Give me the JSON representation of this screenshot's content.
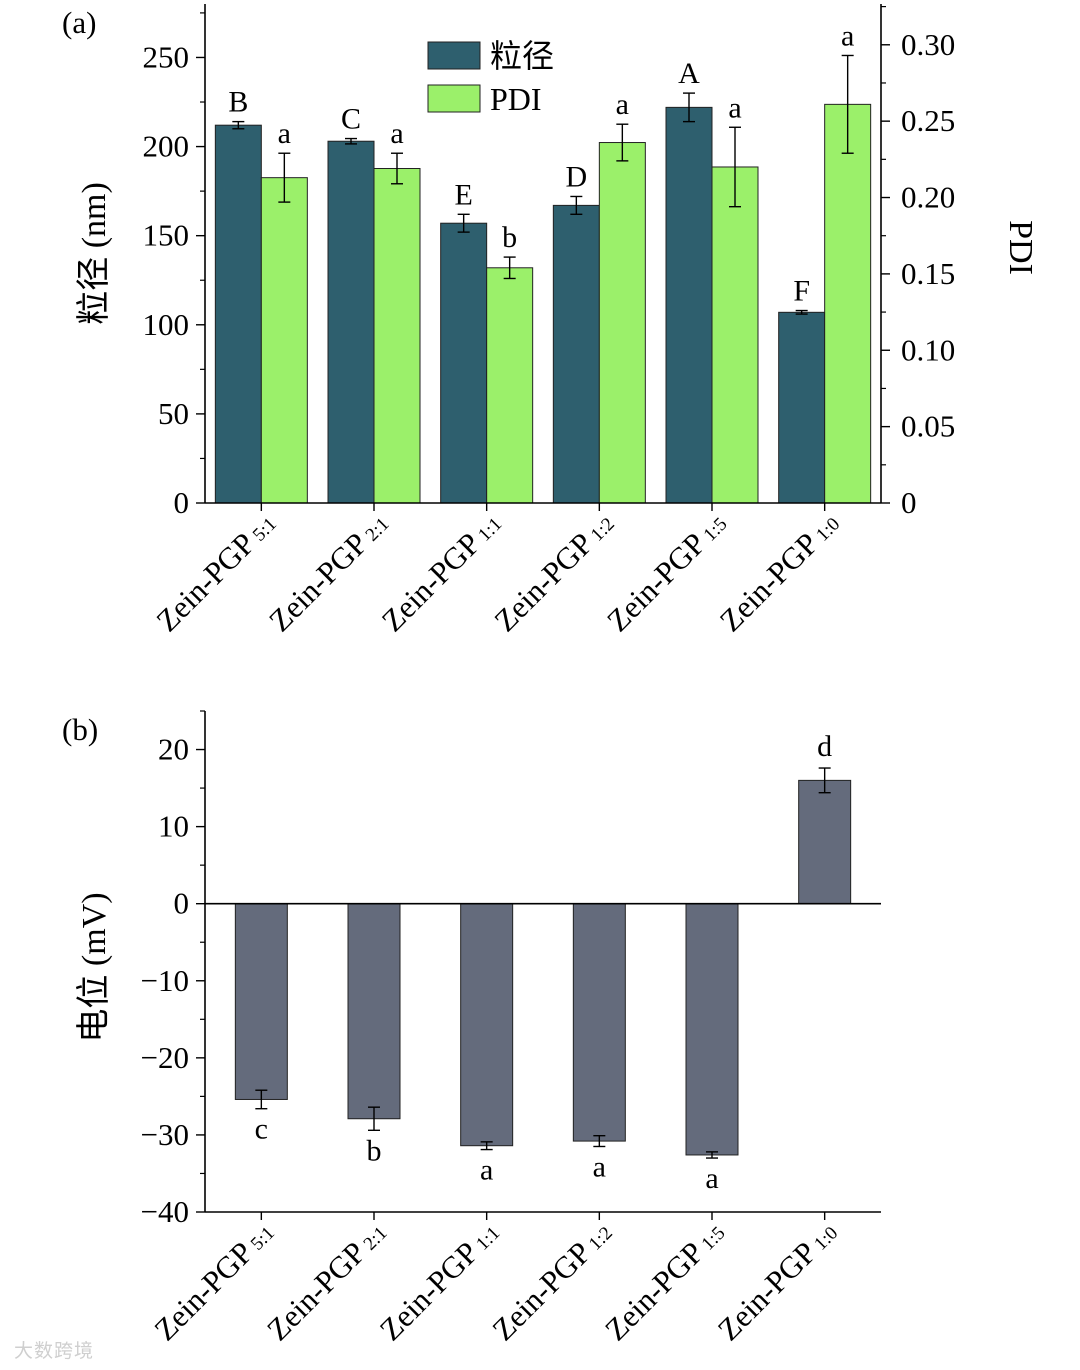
{
  "watermark": "大数跨境",
  "chart_data": [
    {
      "panel": "(a)",
      "type": "bar",
      "categories": [
        {
          "base": "Zein-PGP",
          "ratio": "5:1"
        },
        {
          "base": "Zein-PGP",
          "ratio": "2:1"
        },
        {
          "base": "Zein-PGP",
          "ratio": "1:1"
        },
        {
          "base": "Zein-PGP",
          "ratio": "1:2"
        },
        {
          "base": "Zein-PGP",
          "ratio": "1:5"
        },
        {
          "base": "Zein-PGP",
          "ratio": "1:0"
        }
      ],
      "ylabel": "粒径 (nm)",
      "y2label": "PDI",
      "ylim": [
        0,
        280
      ],
      "y2lim": [
        0,
        0.3267
      ],
      "yticks": [
        0,
        50,
        100,
        150,
        200,
        250
      ],
      "y2ticks": [
        "0",
        "0.05",
        "0.10",
        "0.15",
        "0.20",
        "0.25",
        "0.30"
      ],
      "legend": {
        "position": "top-center"
      },
      "series": [
        {
          "name": "粒径",
          "axis": "left",
          "color": "#2e5f6e",
          "values": [
            212,
            203,
            157,
            167,
            222,
            107
          ],
          "errors": [
            2,
            1.5,
            5,
            5,
            8,
            1
          ],
          "labels": [
            "B",
            "C",
            "E",
            "D",
            "A",
            "F"
          ]
        },
        {
          "name": "PDI",
          "axis": "right",
          "color": "#9bf06a",
          "values": [
            0.213,
            0.219,
            0.154,
            0.236,
            0.22,
            0.261
          ],
          "errors": [
            0.016,
            0.01,
            0.007,
            0.012,
            0.026,
            0.032
          ],
          "labels": [
            "a",
            "a",
            "b",
            "a",
            "a",
            "a"
          ]
        }
      ]
    },
    {
      "panel": "(b)",
      "type": "bar",
      "categories": [
        {
          "base": "Zein-PGP",
          "ratio": "5:1"
        },
        {
          "base": "Zein-PGP",
          "ratio": "2:1"
        },
        {
          "base": "Zein-PGP",
          "ratio": "1:1"
        },
        {
          "base": "Zein-PGP",
          "ratio": "1:2"
        },
        {
          "base": "Zein-PGP",
          "ratio": "1:5"
        },
        {
          "base": "Zein-PGP",
          "ratio": "1:0"
        }
      ],
      "ylabel": "电位 (mV)",
      "ylim": [
        -40,
        25
      ],
      "yticks": [
        {
          "v": -40,
          "t": "−40"
        },
        {
          "v": -30,
          "t": "−30"
        },
        {
          "v": -20,
          "t": "−20"
        },
        {
          "v": -10,
          "t": "−10"
        },
        {
          "v": 0,
          "t": "0"
        },
        {
          "v": 10,
          "t": "10"
        },
        {
          "v": 20,
          "t": "20"
        }
      ],
      "series": [
        {
          "name": "电位",
          "color": "#646b7c",
          "values": [
            -25.4,
            -27.9,
            -31.4,
            -30.8,
            -32.6,
            16.0
          ],
          "errors": [
            1.2,
            1.5,
            0.5,
            0.7,
            0.4,
            1.6
          ],
          "labels": [
            "c",
            "b",
            "a",
            "a",
            "a",
            "d"
          ]
        }
      ]
    }
  ]
}
